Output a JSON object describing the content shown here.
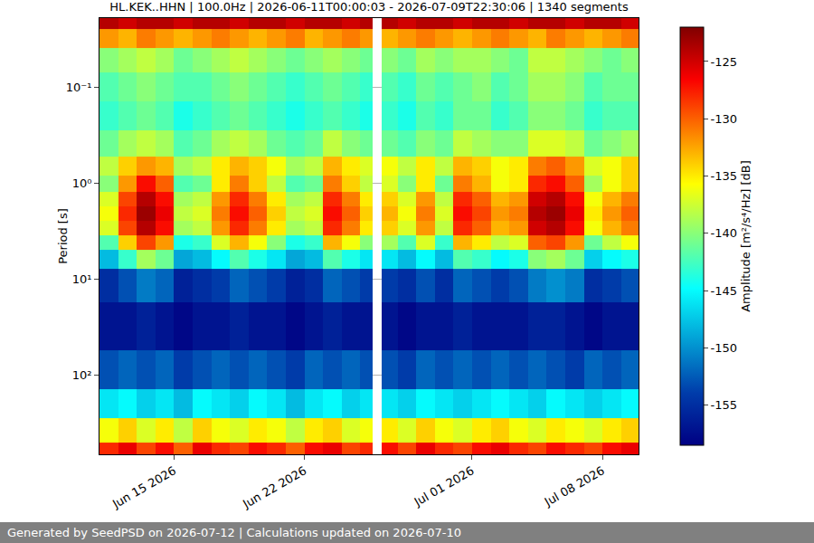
{
  "chart_data": {
    "type": "heatmap",
    "title": "HL.KEK..HHN | 100.0Hz | 2026-06-11T00:00:03 - 2026-07-09T22:30:06 | 1340 segments",
    "ylabel": "Period [s]",
    "colorbar_label": "Amplitude [m²/s⁴/Hz] [dB]",
    "footer": "Generated by SeedPSD on 2026-07-12 | Calculations updated on 2026-07-10",
    "log": "y",
    "grid": true,
    "xlim": [
      "2026-06-11T00:00:03",
      "2026-07-09T22:30:06"
    ],
    "xticks": [
      {
        "value": "2026-06-15",
        "label": "Jun 15 2026"
      },
      {
        "value": "2026-06-22",
        "label": "Jun 22 2026"
      },
      {
        "value": "2026-07-01",
        "label": "Jul 01 2026"
      },
      {
        "value": "2026-07-08",
        "label": "Jul 08 2026"
      }
    ],
    "ylim": [
      0.019,
      670
    ],
    "yticks": [
      {
        "value": 0.1,
        "label": "10⁻¹"
      },
      {
        "value": 1,
        "label": "10⁰"
      },
      {
        "value": 10,
        "label": "10¹"
      },
      {
        "value": 100,
        "label": "10²"
      }
    ],
    "zlim": [
      -158.5,
      -122
    ],
    "zticks": [
      -155,
      -150,
      -145,
      -140,
      -135,
      -130,
      -125
    ],
    "x": [
      "2026-06-11T12:00",
      "2026-06-12T12:00",
      "2026-06-13T12:00",
      "2026-06-14T12:00",
      "2026-06-15T12:00",
      "2026-06-16T12:00",
      "2026-06-17T12:00",
      "2026-06-18T12:00",
      "2026-06-19T12:00",
      "2026-06-20T12:00",
      "2026-06-21T12:00",
      "2026-06-22T12:00",
      "2026-06-23T12:00",
      "2026-06-24T12:00",
      "2026-06-25T12:00",
      "2026-06-25T20:00",
      "2026-06-26T12:00",
      "2026-06-27T12:00",
      "2026-06-28T12:00",
      "2026-06-29T12:00",
      "2026-06-30T12:00",
      "2026-07-01T12:00",
      "2026-07-02T12:00",
      "2026-07-03T12:00",
      "2026-07-04T12:00",
      "2026-07-05T12:00",
      "2026-07-06T12:00",
      "2026-07-07T12:00",
      "2026-07-08T12:00",
      "2026-07-09T12:00"
    ],
    "y": [
      0.02,
      0.03,
      0.05,
      0.1,
      0.2,
      0.4,
      0.7,
      1,
      1.5,
      2,
      3,
      4,
      6,
      10,
      30,
      100,
      200,
      400,
      650
    ],
    "z": [
      [
        -124,
        -125,
        -124,
        -124,
        -125,
        -124,
        -124,
        -125,
        -124,
        -124,
        -125,
        -124,
        -124,
        -125,
        -124,
        null,
        -124,
        -125,
        -124,
        -124,
        -125,
        -124,
        -124,
        -125,
        -124,
        -124,
        -125,
        -124,
        -124,
        -125
      ],
      [
        -132,
        -133,
        -131,
        -132,
        -133,
        -132,
        -131,
        -132,
        -133,
        -132,
        -131,
        -133,
        -132,
        -131,
        -132,
        null,
        -133,
        -132,
        -131,
        -132,
        -133,
        -132,
        -131,
        -132,
        -133,
        -131,
        -132,
        -133,
        -132,
        -131
      ],
      [
        -140,
        -139,
        -138,
        -139,
        -141,
        -140,
        -139,
        -138,
        -139,
        -140,
        -141,
        -140,
        -139,
        -140,
        -141,
        null,
        -140,
        -141,
        -139,
        -140,
        -139,
        -139,
        -140,
        -141,
        -138,
        -138,
        -139,
        -140,
        -141,
        -140
      ],
      [
        -142,
        -141,
        -140,
        -141,
        -142,
        -142,
        -141,
        -140,
        -141,
        -142,
        -143,
        -142,
        -141,
        -142,
        -143,
        null,
        -142,
        -143,
        -141,
        -142,
        -141,
        -140,
        -142,
        -141,
        -139,
        -139,
        -140,
        -142,
        -141,
        -141
      ],
      [
        -143,
        -142,
        -141,
        -142,
        -144,
        -143,
        -142,
        -141,
        -142,
        -143,
        -144,
        -143,
        -142,
        -143,
        -144,
        null,
        -143,
        -144,
        -142,
        -143,
        -141,
        -141,
        -143,
        -142,
        -140,
        -140,
        -141,
        -143,
        -142,
        -142
      ],
      [
        -141,
        -139,
        -138,
        -139,
        -142,
        -141,
        -139,
        -138,
        -139,
        -141,
        -142,
        -141,
        -138,
        -140,
        -141,
        null,
        -141,
        -142,
        -140,
        -141,
        -138,
        -139,
        -140,
        -140,
        -137,
        -137,
        -138,
        -141,
        -140,
        -139
      ],
      [
        -138,
        -134,
        -132,
        -133,
        -139,
        -138,
        -135,
        -133,
        -134,
        -136,
        -139,
        -138,
        -133,
        -135,
        -137,
        null,
        -136,
        -138,
        -135,
        -138,
        -133,
        -134,
        -136,
        -135,
        -131,
        -130,
        -132,
        -137,
        -136,
        -134
      ],
      [
        -140,
        -132,
        -127,
        -130,
        -142,
        -141,
        -135,
        -131,
        -134,
        -138,
        -142,
        -141,
        -131,
        -134,
        -138,
        null,
        -137,
        -140,
        -135,
        -141,
        -131,
        -133,
        -136,
        -135,
        -128,
        -127,
        -130,
        -139,
        -136,
        -134
      ],
      [
        -137,
        -129,
        -124,
        -127,
        -139,
        -138,
        -132,
        -128,
        -131,
        -135,
        -139,
        -138,
        -128,
        -131,
        -135,
        null,
        -134,
        -137,
        -132,
        -138,
        -128,
        -130,
        -133,
        -132,
        -125,
        -124,
        -127,
        -136,
        -133,
        -131
      ],
      [
        -136,
        -128,
        -123,
        -126,
        -138,
        -137,
        -131,
        -127,
        -130,
        -134,
        -138,
        -137,
        -127,
        -130,
        -134,
        null,
        -133,
        -136,
        -131,
        -137,
        -127,
        -129,
        -132,
        -131,
        -124,
        -123,
        -126,
        -135,
        -132,
        -130
      ],
      [
        -137,
        -129,
        -124,
        -127,
        -139,
        -138,
        -132,
        -128,
        -131,
        -135,
        -139,
        -138,
        -128,
        -131,
        -135,
        null,
        -134,
        -137,
        -132,
        -138,
        -128,
        -130,
        -133,
        -132,
        -125,
        -124,
        -127,
        -136,
        -133,
        -131
      ],
      [
        -142,
        -134,
        -129,
        -132,
        -144,
        -143,
        -137,
        -133,
        -136,
        -140,
        -144,
        -143,
        -133,
        -136,
        -140,
        null,
        -139,
        -142,
        -137,
        -143,
        -133,
        -135,
        -138,
        -137,
        -130,
        -129,
        -132,
        -141,
        -138,
        -136
      ],
      [
        -148,
        -143,
        -139,
        -141,
        -149,
        -148,
        -145,
        -142,
        -144,
        -146,
        -149,
        -148,
        -142,
        -144,
        -146,
        null,
        -146,
        -148,
        -145,
        -148,
        -142,
        -143,
        -145,
        -144,
        -140,
        -139,
        -141,
        -147,
        -145,
        -144
      ],
      [
        -155,
        -153,
        -151,
        -152,
        -156,
        -155,
        -154,
        -152,
        -153,
        -154,
        -156,
        -155,
        -152,
        -153,
        -154,
        null,
        -154,
        -155,
        -153,
        -155,
        -152,
        -153,
        -154,
        -153,
        -151,
        -150,
        -151,
        -155,
        -154,
        -153
      ],
      [
        -157,
        -157,
        -156,
        -157,
        -158,
        -157,
        -157,
        -156,
        -157,
        -157,
        -158,
        -157,
        -156,
        -157,
        -157,
        null,
        -157,
        -158,
        -157,
        -157,
        -156,
        -157,
        -157,
        -157,
        -156,
        -156,
        -157,
        -158,
        -157,
        -157
      ],
      [
        -153,
        -152,
        -153,
        -152,
        -154,
        -153,
        -152,
        -153,
        -152,
        -153,
        -154,
        -152,
        -153,
        -152,
        -153,
        null,
        -153,
        -154,
        -152,
        -153,
        -152,
        -153,
        -152,
        -153,
        -152,
        -153,
        -154,
        -152,
        -153,
        -152
      ],
      [
        -146,
        -145,
        -147,
        -146,
        -148,
        -145,
        -146,
        -147,
        -145,
        -146,
        -148,
        -146,
        -145,
        -147,
        -146,
        null,
        -146,
        -147,
        -145,
        -146,
        -147,
        -146,
        -145,
        -146,
        -147,
        -145,
        -146,
        -147,
        -146,
        -145
      ],
      [
        -136,
        -134,
        -137,
        -135,
        -138,
        -134,
        -136,
        -137,
        -135,
        -136,
        -138,
        -135,
        -134,
        -137,
        -136,
        null,
        -135,
        -137,
        -134,
        -136,
        -137,
        -135,
        -134,
        -136,
        -137,
        -135,
        -136,
        -137,
        -135,
        -134
      ],
      [
        -128,
        -126,
        -129,
        -127,
        -130,
        -126,
        -128,
        -129,
        -127,
        -128,
        -130,
        -127,
        -126,
        -129,
        -128,
        null,
        -127,
        -129,
        -126,
        -128,
        -129,
        -127,
        -126,
        -128,
        -129,
        -127,
        -128,
        -129,
        -127,
        -126
      ]
    ]
  }
}
